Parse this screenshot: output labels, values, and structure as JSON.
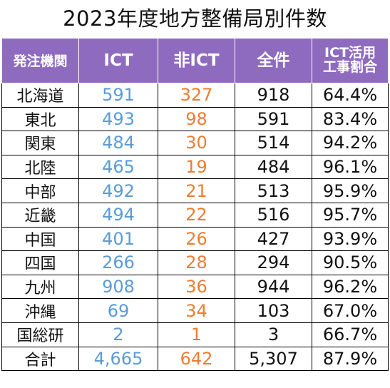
{
  "title": "2023年度地方整備局別件数",
  "headers": {
    "region": "発注機関",
    "ict": "ICT",
    "non_ict": "非ICT",
    "total": "全件",
    "rate_line1": "ICT活用",
    "rate_line2": "工事割合"
  },
  "rows": [
    {
      "region": "北海道",
      "ict": "591",
      "non_ict": "327",
      "total": "918",
      "rate": "64.4%"
    },
    {
      "region": "東北",
      "ict": "493",
      "non_ict": "98",
      "total": "591",
      "rate": "83.4%"
    },
    {
      "region": "関東",
      "ict": "484",
      "non_ict": "30",
      "total": "514",
      "rate": "94.2%"
    },
    {
      "region": "北陸",
      "ict": "465",
      "non_ict": "19",
      "total": "484",
      "rate": "96.1%"
    },
    {
      "region": "中部",
      "ict": "492",
      "non_ict": "21",
      "total": "513",
      "rate": "95.9%"
    },
    {
      "region": "近畿",
      "ict": "494",
      "non_ict": "22",
      "total": "516",
      "rate": "95.7%"
    },
    {
      "region": "中国",
      "ict": "401",
      "non_ict": "26",
      "total": "427",
      "rate": "93.9%"
    },
    {
      "region": "四国",
      "ict": "266",
      "non_ict": "28",
      "total": "294",
      "rate": "90.5%"
    },
    {
      "region": "九州",
      "ict": "908",
      "non_ict": "36",
      "total": "944",
      "rate": "96.2%"
    },
    {
      "region": "沖縄",
      "ict": "69",
      "non_ict": "34",
      "total": "103",
      "rate": "67.0%"
    },
    {
      "region": "国総研",
      "ict": "2",
      "non_ict": "1",
      "total": "3",
      "rate": "66.7%"
    },
    {
      "region": "合計",
      "ict": "4,665",
      "non_ict": "642",
      "total": "5,307",
      "rate": "87.9%"
    }
  ],
  "colors": {
    "header_bg": "#8e6bbf",
    "ict_text": "#5b9bd5",
    "non_ict_text": "#ed7d31"
  }
}
